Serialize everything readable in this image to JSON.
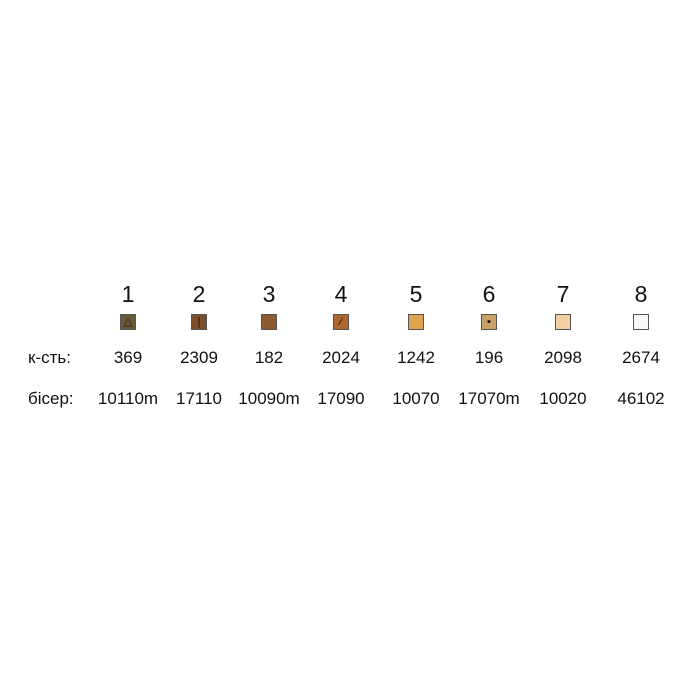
{
  "labels": {
    "count": "к-сть:",
    "beads": "бісер:"
  },
  "items": [
    {
      "n": "1",
      "color": "#6b5a3a",
      "symbol": "△",
      "icon": "triangle-icon",
      "count": "369",
      "bead": "10110m"
    },
    {
      "n": "2",
      "color": "#7d4f2a",
      "symbol": "|",
      "icon": "vertical-line-icon",
      "count": "2309",
      "bead": "17110"
    },
    {
      "n": "3",
      "color": "#8e5a2e",
      "symbol": "",
      "icon": "",
      "count": "182",
      "bead": "10090m"
    },
    {
      "n": "4",
      "color": "#b0672e",
      "symbol": "∕",
      "icon": "slash-icon",
      "count": "2024",
      "bead": "17090"
    },
    {
      "n": "5",
      "color": "#e0a550",
      "symbol": "",
      "icon": "",
      "count": "1242",
      "bead": "10070"
    },
    {
      "n": "6",
      "color": "#c9a067",
      "symbol": "▪",
      "icon": "dot-icon",
      "count": "196",
      "bead": "17070m"
    },
    {
      "n": "7",
      "color": "#f2cfa3",
      "symbol": "",
      "icon": "",
      "count": "2098",
      "bead": "10020"
    },
    {
      "n": "8",
      "color": "#f8f8f8",
      "symbol": "",
      "icon": "",
      "count": "2674",
      "bead": "46102"
    }
  ]
}
